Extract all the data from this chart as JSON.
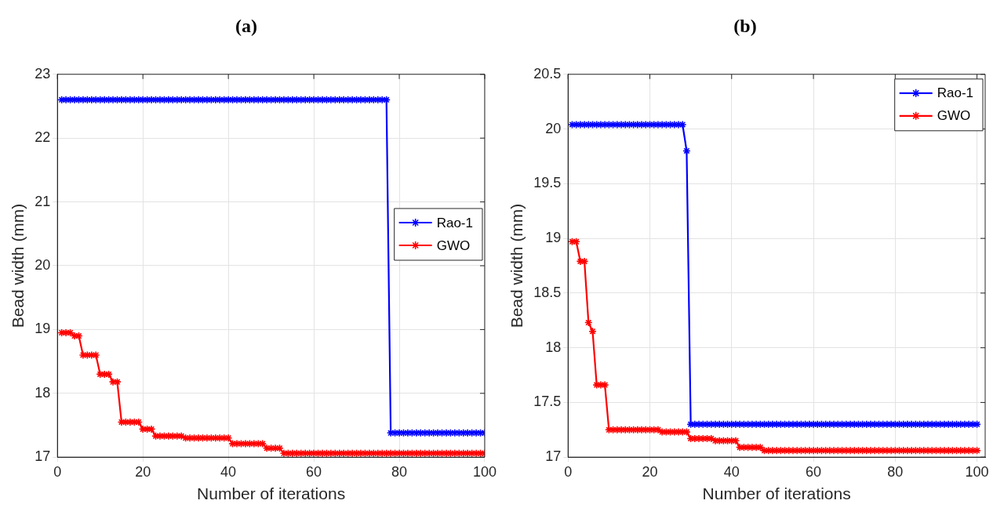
{
  "chart_data": [
    {
      "type": "line",
      "title": "(a)",
      "xlabel": "Number of iterations",
      "ylabel": "Bead width (mm)",
      "xlim": [
        0,
        100
      ],
      "xticks": [
        0,
        20,
        40,
        60,
        80,
        100
      ],
      "ylim": [
        17,
        23
      ],
      "yticks": [
        17,
        18,
        19,
        20,
        21,
        22,
        23
      ],
      "grid": true,
      "legend": "right",
      "marker": "cross",
      "line_style": "solid",
      "x": [
        1,
        2,
        3,
        4,
        5,
        6,
        7,
        8,
        9,
        10,
        11,
        12,
        13,
        14,
        15,
        16,
        17,
        18,
        19,
        20,
        21,
        22,
        23,
        24,
        25,
        26,
        27,
        28,
        29,
        30,
        31,
        32,
        33,
        34,
        35,
        36,
        37,
        38,
        39,
        40,
        41,
        42,
        43,
        44,
        45,
        46,
        47,
        48,
        49,
        50,
        51,
        52,
        53,
        54,
        55,
        56,
        57,
        58,
        59,
        60,
        61,
        62,
        63,
        64,
        65,
        66,
        67,
        68,
        69,
        70,
        71,
        72,
        73,
        74,
        75,
        76,
        77,
        78,
        79,
        80,
        81,
        82,
        83,
        84,
        85,
        86,
        87,
        88,
        89,
        90,
        91,
        92,
        93,
        94,
        95,
        96,
        97,
        98,
        99,
        100
      ],
      "series": [
        {
          "name": "Rao-1",
          "color": "#0000ff",
          "values": [
            22.6,
            22.6,
            22.6,
            22.6,
            22.6,
            22.6,
            22.6,
            22.6,
            22.6,
            22.6,
            22.6,
            22.6,
            22.6,
            22.6,
            22.6,
            22.6,
            22.6,
            22.6,
            22.6,
            22.6,
            22.6,
            22.6,
            22.6,
            22.6,
            22.6,
            22.6,
            22.6,
            22.6,
            22.6,
            22.6,
            22.6,
            22.6,
            22.6,
            22.6,
            22.6,
            22.6,
            22.6,
            22.6,
            22.6,
            22.6,
            22.6,
            22.6,
            22.6,
            22.6,
            22.6,
            22.6,
            22.6,
            22.6,
            22.6,
            22.6,
            22.6,
            22.6,
            22.6,
            22.6,
            22.6,
            22.6,
            22.6,
            22.6,
            22.6,
            22.6,
            22.6,
            22.6,
            22.6,
            22.6,
            22.6,
            22.6,
            22.6,
            22.6,
            22.6,
            22.6,
            22.6,
            22.6,
            22.6,
            22.6,
            22.6,
            22.6,
            22.6,
            17.38,
            17.38,
            17.38,
            17.38,
            17.38,
            17.38,
            17.38,
            17.38,
            17.38,
            17.38,
            17.38,
            17.38,
            17.38,
            17.38,
            17.38,
            17.38,
            17.38,
            17.38,
            17.38,
            17.38,
            17.38,
            17.38,
            17.38
          ]
        },
        {
          "name": "GWO",
          "color": "#ff0000",
          "values": [
            18.95,
            18.95,
            18.95,
            18.9,
            18.9,
            18.6,
            18.6,
            18.6,
            18.6,
            18.3,
            18.3,
            18.3,
            18.18,
            18.18,
            17.55,
            17.55,
            17.55,
            17.55,
            17.55,
            17.44,
            17.44,
            17.44,
            17.33,
            17.33,
            17.33,
            17.33,
            17.33,
            17.33,
            17.33,
            17.3,
            17.3,
            17.3,
            17.3,
            17.3,
            17.3,
            17.3,
            17.3,
            17.3,
            17.3,
            17.3,
            17.21,
            17.21,
            17.21,
            17.21,
            17.21,
            17.21,
            17.21,
            17.21,
            17.14,
            17.14,
            17.14,
            17.14,
            17.06,
            17.06,
            17.06,
            17.06,
            17.06,
            17.06,
            17.06,
            17.06,
            17.06,
            17.06,
            17.06,
            17.06,
            17.06,
            17.06,
            17.06,
            17.06,
            17.06,
            17.06,
            17.06,
            17.06,
            17.06,
            17.06,
            17.06,
            17.06,
            17.06,
            17.06,
            17.06,
            17.06,
            17.06,
            17.06,
            17.06,
            17.06,
            17.06,
            17.06,
            17.06,
            17.06,
            17.06,
            17.06,
            17.06,
            17.06,
            17.06,
            17.06,
            17.06,
            17.06,
            17.06,
            17.06,
            17.06,
            17.06
          ]
        }
      ]
    },
    {
      "type": "line",
      "title": "(b)",
      "xlabel": "Number of iterations",
      "ylabel": "Bead width (mm)",
      "xlim": [
        0,
        102
      ],
      "xticks": [
        0,
        20,
        40,
        60,
        80,
        100
      ],
      "ylim": [
        17,
        20.5
      ],
      "yticks": [
        17,
        17.5,
        18,
        18.5,
        19,
        19.5,
        20,
        20.5
      ],
      "grid": true,
      "legend": "top right",
      "marker": "cross",
      "line_style": "solid",
      "x": [
        1,
        2,
        3,
        4,
        5,
        6,
        7,
        8,
        9,
        10,
        11,
        12,
        13,
        14,
        15,
        16,
        17,
        18,
        19,
        20,
        21,
        22,
        23,
        24,
        25,
        26,
        27,
        28,
        29,
        30,
        31,
        32,
        33,
        34,
        35,
        36,
        37,
        38,
        39,
        40,
        41,
        42,
        43,
        44,
        45,
        46,
        47,
        48,
        49,
        50,
        51,
        52,
        53,
        54,
        55,
        56,
        57,
        58,
        59,
        60,
        61,
        62,
        63,
        64,
        65,
        66,
        67,
        68,
        69,
        70,
        71,
        72,
        73,
        74,
        75,
        76,
        77,
        78,
        79,
        80,
        81,
        82,
        83,
        84,
        85,
        86,
        87,
        88,
        89,
        90,
        91,
        92,
        93,
        94,
        95,
        96,
        97,
        98,
        99,
        100
      ],
      "series": [
        {
          "name": "Rao-1",
          "color": "#0000ff",
          "values": [
            20.04,
            20.04,
            20.04,
            20.04,
            20.04,
            20.04,
            20.04,
            20.04,
            20.04,
            20.04,
            20.04,
            20.04,
            20.04,
            20.04,
            20.04,
            20.04,
            20.04,
            20.04,
            20.04,
            20.04,
            20.04,
            20.04,
            20.04,
            20.04,
            20.04,
            20.04,
            20.04,
            20.04,
            19.8,
            17.3,
            17.3,
            17.3,
            17.3,
            17.3,
            17.3,
            17.3,
            17.3,
            17.3,
            17.3,
            17.3,
            17.3,
            17.3,
            17.3,
            17.3,
            17.3,
            17.3,
            17.3,
            17.3,
            17.3,
            17.3,
            17.3,
            17.3,
            17.3,
            17.3,
            17.3,
            17.3,
            17.3,
            17.3,
            17.3,
            17.3,
            17.3,
            17.3,
            17.3,
            17.3,
            17.3,
            17.3,
            17.3,
            17.3,
            17.3,
            17.3,
            17.3,
            17.3,
            17.3,
            17.3,
            17.3,
            17.3,
            17.3,
            17.3,
            17.3,
            17.3,
            17.3,
            17.3,
            17.3,
            17.3,
            17.3,
            17.3,
            17.3,
            17.3,
            17.3,
            17.3,
            17.3,
            17.3,
            17.3,
            17.3,
            17.3,
            17.3,
            17.3,
            17.3,
            17.3,
            17.3
          ]
        },
        {
          "name": "GWO",
          "color": "#ff0000",
          "values": [
            18.97,
            18.97,
            18.79,
            18.79,
            18.23,
            18.15,
            17.66,
            17.66,
            17.66,
            17.25,
            17.25,
            17.25,
            17.25,
            17.25,
            17.25,
            17.25,
            17.25,
            17.25,
            17.25,
            17.25,
            17.25,
            17.25,
            17.23,
            17.23,
            17.23,
            17.23,
            17.23,
            17.23,
            17.23,
            17.17,
            17.17,
            17.17,
            17.17,
            17.17,
            17.17,
            17.15,
            17.15,
            17.15,
            17.15,
            17.15,
            17.15,
            17.09,
            17.09,
            17.09,
            17.09,
            17.09,
            17.09,
            17.06,
            17.06,
            17.06,
            17.06,
            17.06,
            17.06,
            17.06,
            17.06,
            17.06,
            17.06,
            17.06,
            17.06,
            17.06,
            17.06,
            17.06,
            17.06,
            17.06,
            17.06,
            17.06,
            17.06,
            17.06,
            17.06,
            17.06,
            17.06,
            17.06,
            17.06,
            17.06,
            17.06,
            17.06,
            17.06,
            17.06,
            17.06,
            17.06,
            17.06,
            17.06,
            17.06,
            17.06,
            17.06,
            17.06,
            17.06,
            17.06,
            17.06,
            17.06,
            17.06,
            17.06,
            17.06,
            17.06,
            17.06,
            17.06,
            17.06,
            17.06,
            17.06,
            17.06
          ]
        }
      ]
    }
  ]
}
